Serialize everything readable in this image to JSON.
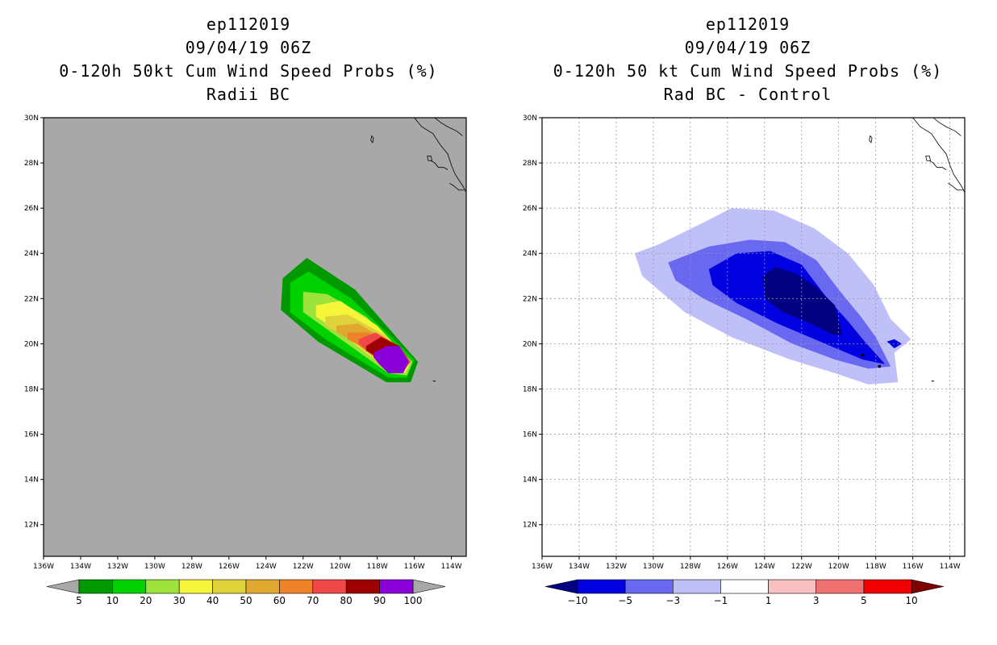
{
  "chart_data": [
    {
      "type": "heatmap",
      "storm_id": "ep112019",
      "datetime": "09/04/19 06Z",
      "title": "0-120h 50kt Cum Wind Speed Probs (%)",
      "subtitle": "Radii BC",
      "background": "#a8a8a8",
      "grid": false,
      "xlim": [
        -136,
        -113.2
      ],
      "ylim": [
        10.6,
        30
      ],
      "x_ticks": [
        -136,
        -134,
        -132,
        -130,
        -128,
        -126,
        -124,
        -122,
        -120,
        -118,
        -116,
        -114
      ],
      "x_tick_labels": [
        "136W",
        "134W",
        "132W",
        "130W",
        "128W",
        "126W",
        "124W",
        "122W",
        "120W",
        "118W",
        "116W",
        "114W"
      ],
      "y_ticks": [
        12,
        14,
        16,
        18,
        20,
        22,
        24,
        26,
        28,
        30
      ],
      "y_tick_labels": [
        "12N",
        "14N",
        "16N",
        "18N",
        "20N",
        "22N",
        "24N",
        "26N",
        "28N",
        "30N"
      ],
      "colorbar": {
        "levels": [
          5,
          10,
          20,
          30,
          40,
          50,
          60,
          70,
          80,
          90,
          100
        ],
        "labels": [
          "5",
          "10",
          "20",
          "30",
          "40",
          "50",
          "60",
          "70",
          "80",
          "90",
          "100"
        ],
        "colors": [
          "#009a00",
          "#00d200",
          "#9ee23c",
          "#f5f53a",
          "#e0d23a",
          "#e0a82e",
          "#ef8228",
          "#f04848",
          "#9e0000",
          "#8a00d8"
        ],
        "extend_color": "#a8a8a8"
      },
      "contours": [
        {
          "level": 5,
          "color": "#009a00",
          "pts": [
            [
              -123.1,
              22.9
            ],
            [
              -121.8,
              23.8
            ],
            [
              -119.2,
              22.4
            ],
            [
              -115.8,
              19.2
            ],
            [
              -116.2,
              18.3
            ],
            [
              -117.5,
              18.3
            ],
            [
              -121.2,
              20.1
            ],
            [
              -123.2,
              21.5
            ]
          ]
        },
        {
          "level": 10,
          "color": "#00d200",
          "pts": [
            [
              -122.7,
              22.7
            ],
            [
              -121.7,
              23.2
            ],
            [
              -119.4,
              22.0
            ],
            [
              -116.0,
              19.3
            ],
            [
              -116.4,
              18.5
            ],
            [
              -117.4,
              18.5
            ],
            [
              -120.8,
              20.2
            ],
            [
              -122.7,
              21.4
            ]
          ]
        },
        {
          "level": 20,
          "color": "#9ee23c",
          "pts": [
            [
              -122.0,
              22.3
            ],
            [
              -120.7,
              22.2
            ],
            [
              -118.6,
              21.2
            ],
            [
              -116.1,
              19.2
            ],
            [
              -116.4,
              18.6
            ],
            [
              -117.4,
              18.7
            ],
            [
              -120.3,
              20.4
            ],
            [
              -122.0,
              21.4
            ]
          ]
        },
        {
          "level": 30,
          "color": "#f5f53a",
          "pts": [
            [
              -121.3,
              21.7
            ],
            [
              -120.0,
              21.9
            ],
            [
              -118.0,
              20.8
            ],
            [
              -116.2,
              19.2
            ],
            [
              -116.5,
              18.7
            ],
            [
              -117.5,
              18.9
            ],
            [
              -120.0,
              20.5
            ],
            [
              -121.3,
              21.2
            ]
          ]
        },
        {
          "level": 40,
          "color": "#e0d23a",
          "pts": [
            [
              -120.8,
              21.2
            ],
            [
              -119.6,
              21.3
            ],
            [
              -117.6,
              20.4
            ],
            [
              -116.3,
              19.2
            ],
            [
              -116.6,
              18.8
            ],
            [
              -117.6,
              19.0
            ],
            [
              -119.6,
              20.3
            ],
            [
              -120.8,
              20.8
            ]
          ]
        },
        {
          "level": 50,
          "color": "#e0a82e",
          "pts": [
            [
              -120.2,
              20.8
            ],
            [
              -119.0,
              20.9
            ],
            [
              -117.4,
              20.1
            ],
            [
              -116.3,
              19.2
            ],
            [
              -116.6,
              18.8
            ],
            [
              -117.7,
              19.1
            ],
            [
              -119.3,
              20.1
            ],
            [
              -120.2,
              20.5
            ]
          ]
        },
        {
          "level": 60,
          "color": "#ef8228",
          "pts": [
            [
              -119.6,
              20.5
            ],
            [
              -118.5,
              20.5
            ],
            [
              -117.2,
              20.0
            ],
            [
              -116.2,
              19.2
            ],
            [
              -116.6,
              18.8
            ],
            [
              -117.8,
              19.2
            ],
            [
              -118.9,
              19.9
            ],
            [
              -119.6,
              20.2
            ]
          ]
        },
        {
          "level": 70,
          "color": "#f04848",
          "pts": [
            [
              -119.0,
              20.2
            ],
            [
              -118.1,
              20.5
            ],
            [
              -116.8,
              19.9
            ],
            [
              -116.2,
              19.2
            ],
            [
              -116.6,
              18.8
            ],
            [
              -117.9,
              19.3
            ],
            [
              -118.7,
              19.8
            ],
            [
              -119.0,
              20.0
            ]
          ]
        },
        {
          "level": 80,
          "color": "#9e0000",
          "pts": [
            [
              -118.6,
              19.9
            ],
            [
              -117.8,
              20.3
            ],
            [
              -116.8,
              19.9
            ],
            [
              -116.3,
              19.2
            ],
            [
              -116.6,
              18.8
            ],
            [
              -118.0,
              19.4
            ],
            [
              -118.6,
              19.7
            ]
          ]
        },
        {
          "level": 90,
          "color": "#8a00d8",
          "pts": [
            [
              -118.2,
              19.6
            ],
            [
              -117.5,
              19.9
            ],
            [
              -116.8,
              19.9
            ],
            [
              -116.3,
              19.2
            ],
            [
              -116.6,
              18.7
            ],
            [
              -117.4,
              18.7
            ],
            [
              -117.9,
              19.1
            ],
            [
              -118.2,
              19.4
            ]
          ]
        }
      ]
    },
    {
      "type": "heatmap",
      "storm_id": "ep112019",
      "datetime": "09/04/19 06Z",
      "title": "0-120h 50 kt Cum Wind Speed Probs (%)",
      "subtitle": "Rad BC - Control",
      "background": "#ffffff",
      "grid": true,
      "xlim": [
        -136,
        -113.2
      ],
      "ylim": [
        10.6,
        30
      ],
      "x_ticks": [
        -136,
        -134,
        -132,
        -130,
        -128,
        -126,
        -124,
        -122,
        -120,
        -118,
        -116,
        -114
      ],
      "x_tick_labels": [
        "136W",
        "134W",
        "132W",
        "130W",
        "128W",
        "126W",
        "124W",
        "122W",
        "120W",
        "118W",
        "116W",
        "114W"
      ],
      "y_ticks": [
        12,
        14,
        16,
        18,
        20,
        22,
        24,
        26,
        28,
        30
      ],
      "y_tick_labels": [
        "12N",
        "14N",
        "16N",
        "18N",
        "20N",
        "22N",
        "24N",
        "26N",
        "28N",
        "30N"
      ],
      "colorbar": {
        "levels": [
          -10,
          -5,
          -3,
          -1,
          1,
          3,
          5,
          10
        ],
        "labels": [
          "−10",
          "−5",
          "−3",
          "−1",
          "1",
          "3",
          "5",
          "10"
        ],
        "colors": [
          "#0000e0",
          "#6868f0",
          "#c0c0f8",
          "#ffffff",
          "#f8c0c0",
          "#f07070",
          "#f00000"
        ],
        "extend_low_color": "#000080",
        "extend_high_color": "#800000"
      },
      "contours": [
        {
          "level": -1,
          "color": "#c0c0f8",
          "pts": [
            [
              -131.0,
              24.0
            ],
            [
              -129.7,
              24.4
            ],
            [
              -127.2,
              25.4
            ],
            [
              -125.8,
              26.0
            ],
            [
              -123.5,
              25.9
            ],
            [
              -121.3,
              25.1
            ],
            [
              -119.5,
              24.0
            ],
            [
              -118.1,
              22.6
            ],
            [
              -117.2,
              21.1
            ],
            [
              -116.1,
              20.2
            ],
            [
              -117.0,
              19.6
            ],
            [
              -116.8,
              18.3
            ],
            [
              -118.4,
              18.2
            ],
            [
              -120.2,
              18.7
            ],
            [
              -122.6,
              19.3
            ],
            [
              -125.8,
              20.3
            ],
            [
              -128.3,
              21.4
            ],
            [
              -130.6,
              23.0
            ]
          ]
        },
        {
          "level": -3,
          "color": "#6868f0",
          "pts": [
            [
              -129.2,
              23.6
            ],
            [
              -127.0,
              24.3
            ],
            [
              -124.8,
              24.6
            ],
            [
              -122.9,
              24.5
            ],
            [
              -121.2,
              23.7
            ],
            [
              -120.0,
              22.4
            ],
            [
              -118.8,
              21.2
            ],
            [
              -118.0,
              20.3
            ],
            [
              -117.2,
              19.0
            ],
            [
              -118.4,
              18.9
            ],
            [
              -120.2,
              19.3
            ],
            [
              -122.5,
              20.0
            ],
            [
              -125.0,
              21.1
            ],
            [
              -127.3,
              22.0
            ],
            [
              -128.8,
              22.8
            ]
          ]
        },
        {
          "level": -5,
          "color": "#0000e0",
          "pts": [
            [
              -127.0,
              23.3
            ],
            [
              -125.5,
              24.0
            ],
            [
              -123.7,
              24.1
            ],
            [
              -122.0,
              23.5
            ],
            [
              -120.7,
              22.1
            ],
            [
              -119.5,
              21.0
            ],
            [
              -118.6,
              20.1
            ],
            [
              -117.5,
              19.1
            ],
            [
              -118.7,
              19.3
            ],
            [
              -121.0,
              20.1
            ],
            [
              -123.3,
              20.9
            ],
            [
              -125.5,
              21.8
            ],
            [
              -126.8,
              22.6
            ]
          ]
        },
        {
          "level": -10,
          "color": "#000080",
          "pts": [
            [
              -124.1,
              23.0
            ],
            [
              -123.4,
              23.4
            ],
            [
              -122.3,
              23.1
            ],
            [
              -121.2,
              22.5
            ],
            [
              -120.2,
              21.7
            ],
            [
              -119.8,
              20.4
            ],
            [
              -120.3,
              20.4
            ],
            [
              -121.5,
              20.9
            ],
            [
              -123.0,
              21.4
            ],
            [
              -124.0,
              22.0
            ]
          ]
        },
        {
          "level": -5,
          "color": "#0000e0",
          "pts": [
            [
              -117.4,
              20.1
            ],
            [
              -117.0,
              20.2
            ],
            [
              -116.6,
              20.0
            ],
            [
              -117.0,
              19.8
            ]
          ]
        }
      ],
      "contour_dots": [
        [
          -118.7,
          19.5
        ],
        [
          -117.8,
          19.0
        ]
      ]
    }
  ]
}
